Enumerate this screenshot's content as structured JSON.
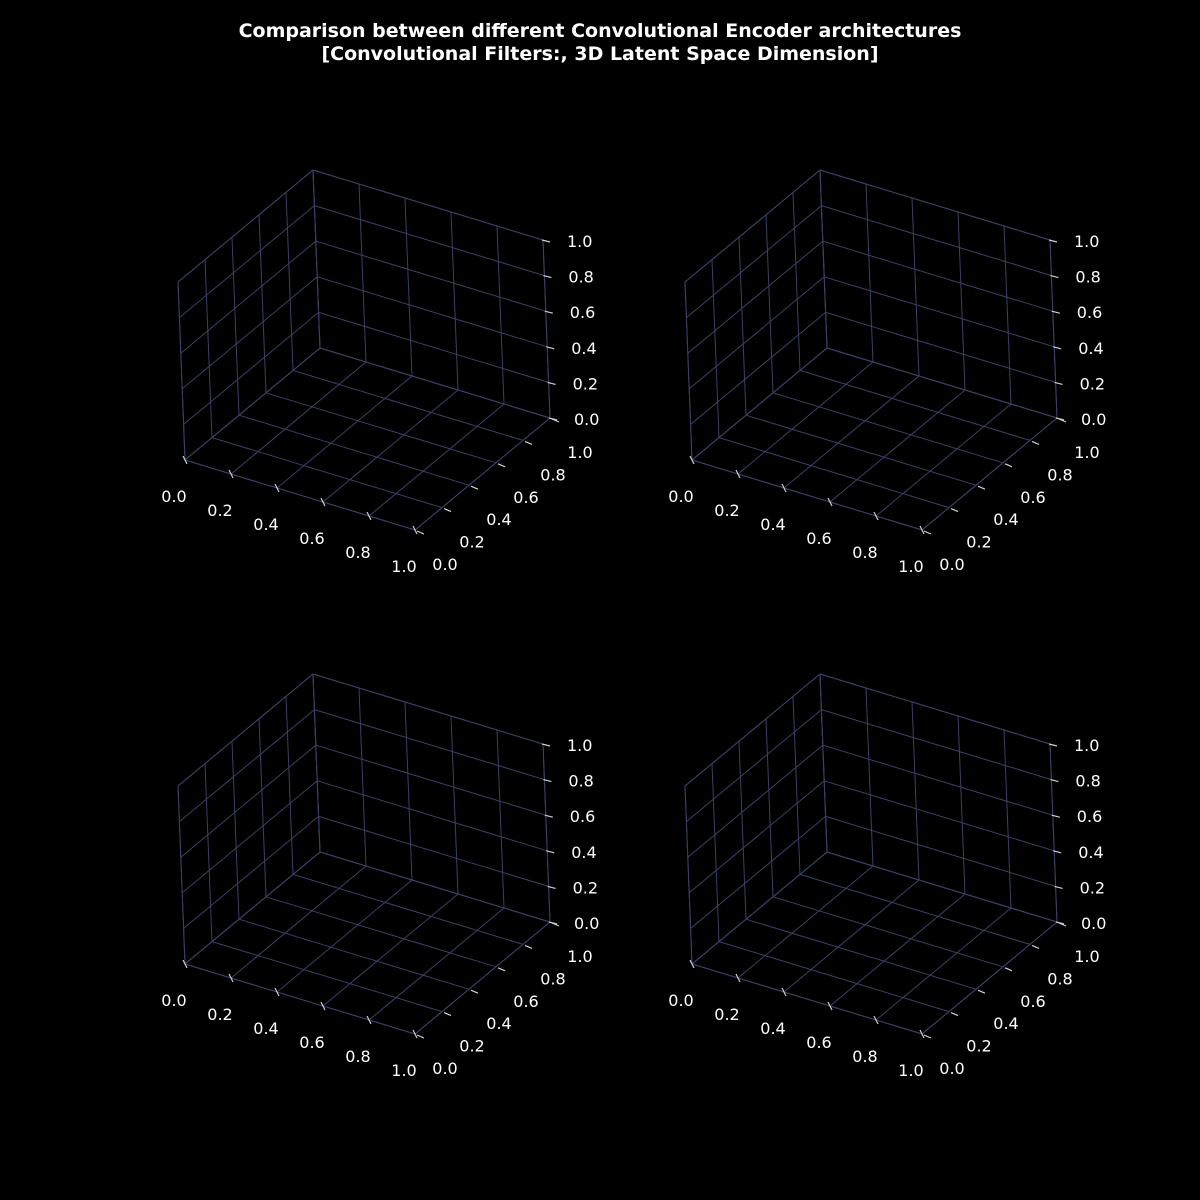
{
  "figure": {
    "title_line1": "Comparison between different Convolutional Encoder architectures",
    "title_line2": "[Convolutional Filters:, 3D Latent Space Dimension]"
  },
  "colors": {
    "background": "#000000",
    "grid": "#3a4165",
    "tick_mark": "#d0d0d0",
    "text": "#ffffff"
  },
  "chart_data": [
    {
      "type": "scatter3d",
      "title": "",
      "xlim": [
        0,
        1
      ],
      "ylim": [
        0,
        1
      ],
      "zlim": [
        0,
        1
      ],
      "x_ticks": [
        "0.0",
        "0.2",
        "0.4",
        "0.6",
        "0.8",
        "1.0"
      ],
      "y_ticks": [
        "0.0",
        "0.2",
        "0.4",
        "0.6",
        "0.8",
        "1.0"
      ],
      "z_ticks": [
        "0.0",
        "0.2",
        "0.4",
        "0.6",
        "0.8",
        "1.0"
      ],
      "series": [],
      "grid": true
    },
    {
      "type": "scatter3d",
      "title": "",
      "xlim": [
        0,
        1
      ],
      "ylim": [
        0,
        1
      ],
      "zlim": [
        0,
        1
      ],
      "x_ticks": [
        "0.0",
        "0.2",
        "0.4",
        "0.6",
        "0.8",
        "1.0"
      ],
      "y_ticks": [
        "0.0",
        "0.2",
        "0.4",
        "0.6",
        "0.8",
        "1.0"
      ],
      "z_ticks": [
        "0.0",
        "0.2",
        "0.4",
        "0.6",
        "0.8",
        "1.0"
      ],
      "series": [],
      "grid": true
    },
    {
      "type": "scatter3d",
      "title": "",
      "xlim": [
        0,
        1
      ],
      "ylim": [
        0,
        1
      ],
      "zlim": [
        0,
        1
      ],
      "x_ticks": [
        "0.0",
        "0.2",
        "0.4",
        "0.6",
        "0.8",
        "1.0"
      ],
      "y_ticks": [
        "0.0",
        "0.2",
        "0.4",
        "0.6",
        "0.8",
        "1.0"
      ],
      "z_ticks": [
        "0.0",
        "0.2",
        "0.4",
        "0.6",
        "0.8",
        "1.0"
      ],
      "series": [],
      "grid": true
    },
    {
      "type": "scatter3d",
      "title": "",
      "xlim": [
        0,
        1
      ],
      "ylim": [
        0,
        1
      ],
      "zlim": [
        0,
        1
      ],
      "x_ticks": [
        "0.0",
        "0.2",
        "0.4",
        "0.6",
        "0.8",
        "1.0"
      ],
      "y_ticks": [
        "0.0",
        "0.2",
        "0.4",
        "0.6",
        "0.8",
        "1.0"
      ],
      "z_ticks": [
        "0.0",
        "0.2",
        "0.4",
        "0.6",
        "0.8",
        "1.0"
      ],
      "series": [],
      "grid": true
    }
  ]
}
